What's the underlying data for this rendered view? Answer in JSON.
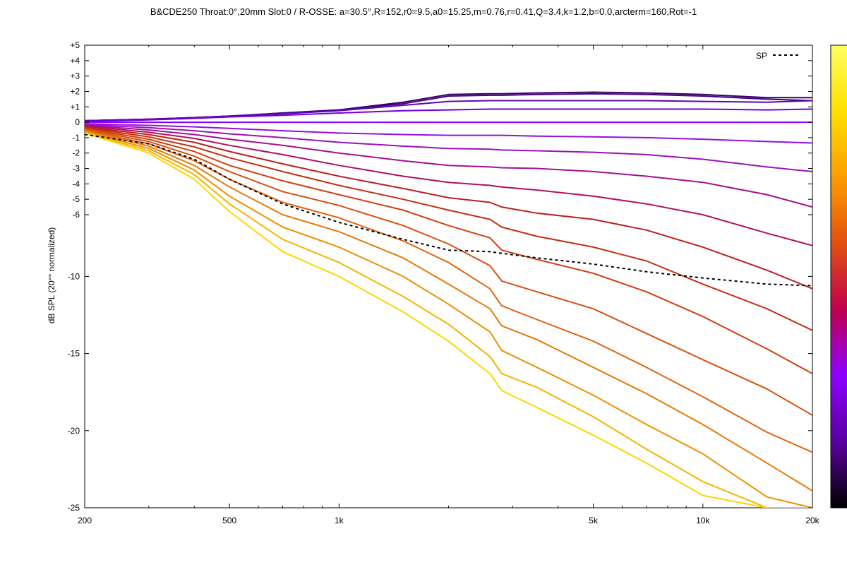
{
  "chart_data": {
    "type": "line",
    "title": "B&CDE250 Throat:0°,20mm Slot:0 / R-OSSE: a=30.5°,R=152,r0=9.5,a0=15.25,m=0.76,r=0.41,Q=3.4,k=1.2,b=0.0,arcterm=160,Rot=-1",
    "xlabel": "",
    "ylabel": "dB SPL (20°° normalized)",
    "x_scale": "log",
    "xlim": [
      200,
      20000
    ],
    "ylim": [
      -25,
      5
    ],
    "x_ticks": [
      {
        "value": 200,
        "label": "200"
      },
      {
        "value": 500,
        "label": "500"
      },
      {
        "value": 1000,
        "label": "1k"
      },
      {
        "value": 5000,
        "label": "5k"
      },
      {
        "value": 10000,
        "label": "10k"
      },
      {
        "value": 20000,
        "label": "20k"
      }
    ],
    "y_ticks": [
      {
        "value": 5,
        "label": "+5"
      },
      {
        "value": 4,
        "label": "+4"
      },
      {
        "value": 3,
        "label": "+3"
      },
      {
        "value": 2,
        "label": "+2"
      },
      {
        "value": 1,
        "label": "+1"
      },
      {
        "value": 0,
        "label": "0"
      },
      {
        "value": -1,
        "label": "-1"
      },
      {
        "value": -2,
        "label": "-2"
      },
      {
        "value": -3,
        "label": "-3"
      },
      {
        "value": -4,
        "label": "-4"
      },
      {
        "value": -5,
        "label": "-5"
      },
      {
        "value": -6,
        "label": "-6"
      },
      {
        "value": -10,
        "label": "-10"
      },
      {
        "value": -15,
        "label": "-15"
      },
      {
        "value": -20,
        "label": "-20"
      },
      {
        "value": -25,
        "label": "-25"
      }
    ],
    "grid": false,
    "legend": {
      "position": "top-right",
      "entries": [
        {
          "label": "SP",
          "style": "dashed",
          "color": "#000000"
        }
      ]
    },
    "colorbar": {
      "position": "right",
      "colormap": [
        "#000000",
        "#5a00a0",
        "#8f00ff",
        "#c0004f",
        "#e05010",
        "#ff9c00",
        "#ffe000",
        "#ffff60"
      ]
    },
    "x": [
      200,
      300,
      400,
      500,
      700,
      1000,
      1500,
      2000,
      2600,
      2800,
      3500,
      5000,
      7000,
      10000,
      15000,
      20000
    ],
    "series": [
      {
        "color": "#3a0060",
        "values": [
          0.1,
          0.2,
          0.3,
          0.4,
          0.6,
          0.8,
          1.3,
          1.8,
          1.85,
          1.85,
          1.9,
          1.95,
          1.9,
          1.8,
          1.6,
          1.6
        ]
      },
      {
        "color": "#46008a",
        "values": [
          0.1,
          0.2,
          0.3,
          0.4,
          0.6,
          0.8,
          1.2,
          1.7,
          1.75,
          1.75,
          1.8,
          1.85,
          1.8,
          1.7,
          1.5,
          1.4
        ]
      },
      {
        "color": "#5a08b0",
        "values": [
          0.1,
          0.2,
          0.3,
          0.4,
          0.55,
          0.75,
          1.1,
          1.35,
          1.4,
          1.4,
          1.4,
          1.4,
          1.4,
          1.35,
          1.3,
          1.4
        ]
      },
      {
        "color": "#7000dc",
        "values": [
          0.05,
          0.15,
          0.25,
          0.35,
          0.45,
          0.6,
          0.75,
          0.8,
          0.85,
          0.85,
          0.85,
          0.85,
          0.85,
          0.85,
          0.8,
          0.85
        ]
      },
      {
        "color": "#8c00ff",
        "values": [
          0.0,
          0.0,
          0.0,
          0.0,
          0.0,
          0.0,
          0.0,
          0.0,
          0.0,
          0.0,
          0.0,
          0.0,
          0.0,
          0.0,
          0.0,
          0.0
        ]
      },
      {
        "color": "#9410e0",
        "values": [
          -0.1,
          -0.2,
          -0.3,
          -0.4,
          -0.55,
          -0.7,
          -0.8,
          -0.85,
          -0.85,
          -0.85,
          -0.9,
          -0.95,
          -1.0,
          -1.1,
          -1.25,
          -1.35
        ]
      },
      {
        "color": "#9a12b8",
        "values": [
          -0.15,
          -0.35,
          -0.55,
          -0.75,
          -1.0,
          -1.3,
          -1.55,
          -1.7,
          -1.75,
          -1.8,
          -1.85,
          -1.95,
          -2.1,
          -2.4,
          -2.9,
          -3.2
        ]
      },
      {
        "color": "#a41090",
        "values": [
          -0.2,
          -0.5,
          -0.8,
          -1.1,
          -1.5,
          -2.0,
          -2.5,
          -2.8,
          -2.9,
          -2.95,
          -3.0,
          -3.2,
          -3.5,
          -3.9,
          -4.7,
          -5.5
        ]
      },
      {
        "color": "#b01060",
        "values": [
          -0.25,
          -0.65,
          -1.05,
          -1.5,
          -2.1,
          -2.8,
          -3.5,
          -3.9,
          -4.1,
          -4.2,
          -4.4,
          -4.8,
          -5.3,
          -6.0,
          -7.2,
          -8.0
        ]
      },
      {
        "color": "#bb2020",
        "values": [
          -0.3,
          -0.8,
          -1.3,
          -1.9,
          -2.7,
          -3.5,
          -4.3,
          -4.9,
          -5.2,
          -5.5,
          -5.9,
          -6.3,
          -7.0,
          -8.1,
          -9.6,
          -10.8
        ]
      },
      {
        "color": "#c53010",
        "values": [
          -0.35,
          -0.95,
          -1.6,
          -2.3,
          -3.2,
          -4.1,
          -5.0,
          -5.7,
          -6.3,
          -6.8,
          -7.4,
          -8.1,
          -9.0,
          -10.5,
          -12.1,
          -13.5
        ]
      },
      {
        "color": "#d04010",
        "values": [
          -0.4,
          -1.1,
          -1.9,
          -2.8,
          -3.8,
          -4.7,
          -5.7,
          -6.7,
          -7.5,
          -8.3,
          -8.9,
          -9.8,
          -11.0,
          -12.6,
          -14.7,
          -16.3
        ]
      },
      {
        "color": "#d95010",
        "values": [
          -0.45,
          -1.25,
          -2.2,
          -3.2,
          -4.5,
          -5.4,
          -6.7,
          -7.9,
          -9.3,
          -10.3,
          -11.0,
          -12.1,
          -13.7,
          -15.4,
          -17.3,
          -19.0
        ]
      },
      {
        "color": "#e06410",
        "values": [
          -0.5,
          -1.4,
          -2.5,
          -3.7,
          -5.2,
          -6.2,
          -7.7,
          -9.1,
          -10.8,
          -11.9,
          -12.8,
          -14.2,
          -15.9,
          -17.8,
          -20.1,
          -21.4
        ]
      },
      {
        "color": "#e67a08",
        "values": [
          -0.55,
          -1.55,
          -2.8,
          -4.2,
          -6.0,
          -7.1,
          -8.8,
          -10.5,
          -12.1,
          -13.2,
          -14.1,
          -15.9,
          -17.6,
          -19.6,
          -22.1,
          -23.9
        ]
      },
      {
        "color": "#ec9000",
        "values": [
          -0.6,
          -1.7,
          -3.1,
          -4.8,
          -6.8,
          -8.1,
          -10.0,
          -11.8,
          -13.6,
          -14.8,
          -15.9,
          -17.7,
          -19.6,
          -21.5,
          -24.3,
          -25.0
        ]
      },
      {
        "color": "#f4b400",
        "values": [
          -0.65,
          -1.85,
          -3.4,
          -5.3,
          -7.6,
          -9.1,
          -11.3,
          -13.1,
          -15.2,
          -16.3,
          -17.2,
          -19.1,
          -21.2,
          -23.3,
          -25.0,
          -25.0
        ]
      },
      {
        "color": "#ffd500",
        "values": [
          -0.7,
          -2.0,
          -3.7,
          -5.8,
          -8.4,
          -10.0,
          -12.3,
          -14.2,
          -16.3,
          -17.4,
          -18.5,
          -20.3,
          -22.1,
          -24.2,
          -25.0,
          -25.0
        ]
      },
      {
        "name": "SP",
        "color": "#000000",
        "dashed": true,
        "values": [
          -0.8,
          -1.4,
          -2.4,
          -3.7,
          -5.3,
          -6.5,
          -7.6,
          -8.3,
          -8.4,
          -8.5,
          -8.8,
          -9.2,
          -9.7,
          -10.1,
          -10.5,
          -10.6
        ]
      }
    ]
  }
}
